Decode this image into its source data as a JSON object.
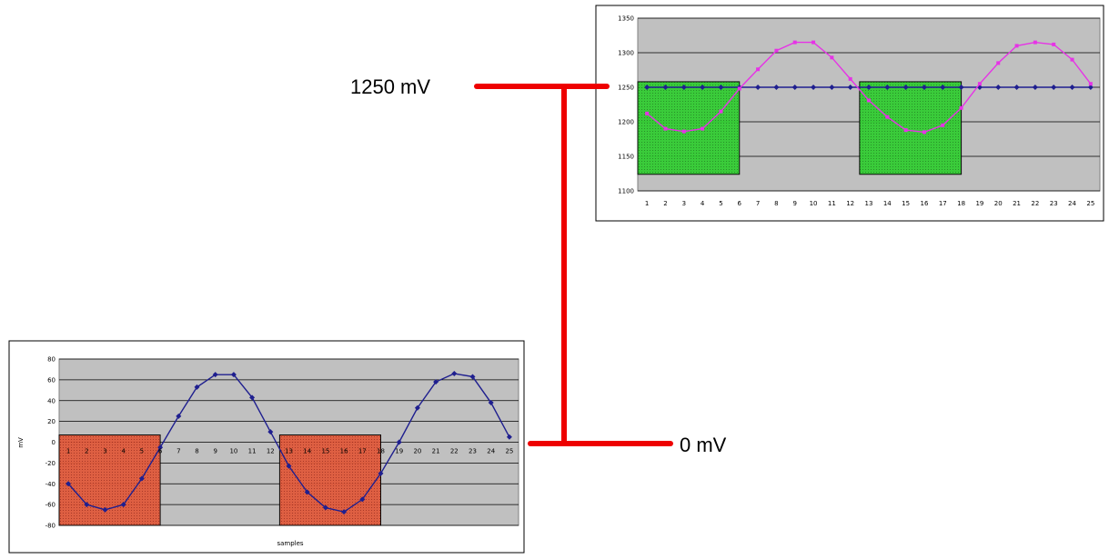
{
  "labels": {
    "top_voltage": "1250 mV",
    "bottom_voltage": "0 mV"
  },
  "colors": {
    "connector": "#ee0000",
    "plot_bg": "#c0c0c0",
    "gridline": "#000000",
    "blue": "#1f1f8f",
    "magenta": "#e633e6",
    "green_box": "#33cc33",
    "red_box": "#e05a3c"
  },
  "chart_data": [
    {
      "type": "line",
      "chart": "top",
      "x": [
        1,
        2,
        3,
        4,
        5,
        6,
        7,
        8,
        9,
        10,
        11,
        12,
        13,
        14,
        15,
        16,
        17,
        18,
        19,
        20,
        21,
        22,
        23,
        24,
        25
      ],
      "categories": [
        "1",
        "2",
        "3",
        "4",
        "5",
        "6",
        "7",
        "8",
        "9",
        "10",
        "11",
        "12",
        "13",
        "14",
        "15",
        "16",
        "17",
        "18",
        "19",
        "20",
        "21",
        "22",
        "23",
        "24",
        "25"
      ],
      "ylim": [
        1100,
        1350
      ],
      "yticks": [
        1100,
        1150,
        1200,
        1250,
        1300,
        1350
      ],
      "grid": true,
      "series": [
        {
          "color": "#1f1f8f",
          "marker": "diamond",
          "values": [
            1250,
            1250,
            1250,
            1250,
            1250,
            1250,
            1250,
            1250,
            1250,
            1250,
            1250,
            1250,
            1250,
            1250,
            1250,
            1250,
            1250,
            1250,
            1250,
            1250,
            1250,
            1250,
            1250,
            1250,
            1250
          ]
        },
        {
          "color": "#e633e6",
          "marker": "square",
          "values": [
            1212,
            1190,
            1186,
            1190,
            1215,
            1248,
            1276,
            1303,
            1315,
            1315,
            1293,
            1262,
            1231,
            1207,
            1188,
            1185,
            1195,
            1220,
            1255,
            1285,
            1310,
            1315,
            1312,
            1290,
            1255
          ]
        }
      ],
      "highlight_boxes": [
        {
          "x_from": 0.5,
          "x_to": 6.0,
          "y_from": 1124,
          "y_to": 1258,
          "color": "#33cc33"
        },
        {
          "x_from": 12.5,
          "x_to": 18.0,
          "y_from": 1124,
          "y_to": 1258,
          "color": "#33cc33"
        }
      ]
    },
    {
      "type": "line",
      "chart": "bottom",
      "x": [
        1,
        2,
        3,
        4,
        5,
        6,
        7,
        8,
        9,
        10,
        11,
        12,
        13,
        14,
        15,
        16,
        17,
        18,
        19,
        20,
        21,
        22,
        23,
        24,
        25
      ],
      "categories": [
        "1",
        "2",
        "3",
        "4",
        "5",
        "6",
        "7",
        "8",
        "9",
        "10",
        "11",
        "12",
        "13",
        "14",
        "15",
        "16",
        "17",
        "18",
        "19",
        "20",
        "21",
        "22",
        "23",
        "24",
        "25"
      ],
      "xlabel": "samples",
      "ylabel": "mV",
      "ylim": [
        -80,
        80
      ],
      "yticks": [
        -80,
        -60,
        -40,
        -20,
        0,
        20,
        40,
        60,
        80
      ],
      "grid": true,
      "series": [
        {
          "color": "#1f1f8f",
          "marker": "diamond",
          "values": [
            -40,
            -60,
            -65,
            -60,
            -35,
            -5,
            25,
            53,
            65,
            65,
            43,
            10,
            -23,
            -48,
            -63,
            -67,
            -55,
            -30,
            0,
            33,
            58,
            66,
            63,
            38,
            5
          ]
        }
      ],
      "highlight_boxes": [
        {
          "x_from": 0.5,
          "x_to": 6.0,
          "y_from": -80,
          "y_to": 7,
          "color": "#e05a3c"
        },
        {
          "x_from": 12.5,
          "x_to": 18.0,
          "y_from": -80,
          "y_to": 7,
          "color": "#e05a3c"
        }
      ]
    }
  ]
}
